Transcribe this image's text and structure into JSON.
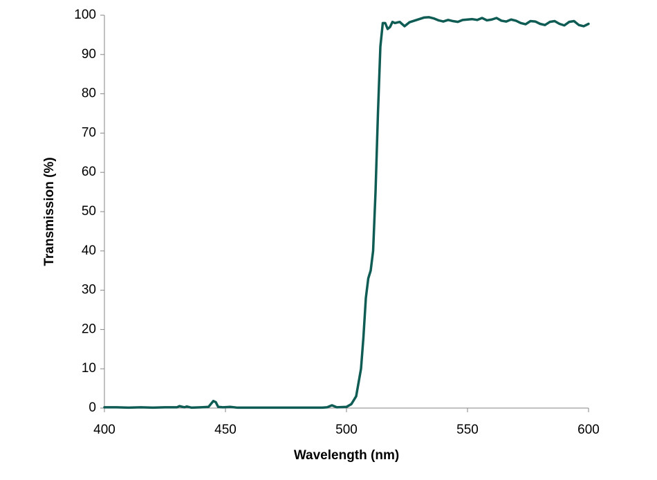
{
  "chart_data": {
    "type": "line",
    "x_label": "Wavelength (nm)",
    "y_label": "Transmission (%)",
    "x": [
      400,
      405,
      410,
      415,
      420,
      425,
      430,
      431,
      433,
      434,
      436,
      440,
      443,
      445,
      446,
      447,
      449,
      452,
      455,
      460,
      470,
      480,
      490,
      492,
      494,
      496,
      500,
      502,
      504,
      506,
      507,
      508,
      509,
      510,
      511,
      512,
      513,
      514,
      515,
      516,
      517,
      518,
      519,
      520,
      522,
      524,
      526,
      528,
      530,
      532,
      534,
      536,
      538,
      540,
      542,
      544,
      546,
      548,
      550,
      552,
      554,
      556,
      558,
      560,
      562,
      564,
      566,
      568,
      570,
      572,
      574,
      576,
      578,
      580,
      582,
      584,
      586,
      588,
      590,
      592,
      594,
      596,
      598,
      600
    ],
    "values": [
      0.2,
      0.2,
      0.1,
      0.2,
      0.1,
      0.2,
      0.2,
      0.5,
      0.2,
      0.4,
      0.1,
      0.2,
      0.3,
      1.8,
      1.5,
      0.3,
      0.2,
      0.3,
      0.1,
      0.1,
      0.1,
      0.1,
      0.1,
      0.2,
      0.7,
      0.2,
      0.3,
      1,
      3,
      10,
      18,
      28,
      33,
      35,
      40,
      55,
      75,
      92,
      98,
      98,
      96.5,
      97,
      98.3,
      98,
      98.3,
      97.2,
      98.2,
      98.6,
      99,
      99.4,
      99.5,
      99.2,
      98.7,
      98.4,
      98.8,
      98.5,
      98.3,
      98.8,
      98.9,
      99,
      98.8,
      99.3,
      98.7,
      98.9,
      99.3,
      98.6,
      98.4,
      98.9,
      98.6,
      98,
      97.7,
      98.5,
      98.4,
      97.8,
      97.5,
      98.3,
      98.5,
      97.8,
      97.4,
      98.3,
      98.5,
      97.5,
      97.2,
      97.8
    ],
    "color": "#0f5c54",
    "xlim": [
      400,
      600
    ],
    "xticks": [
      400,
      450,
      500,
      550,
      600
    ],
    "ylim": [
      0,
      100
    ],
    "yticks": [
      0,
      10,
      20,
      30,
      40,
      50,
      60,
      70,
      80,
      90,
      100
    ],
    "grid": false
  }
}
